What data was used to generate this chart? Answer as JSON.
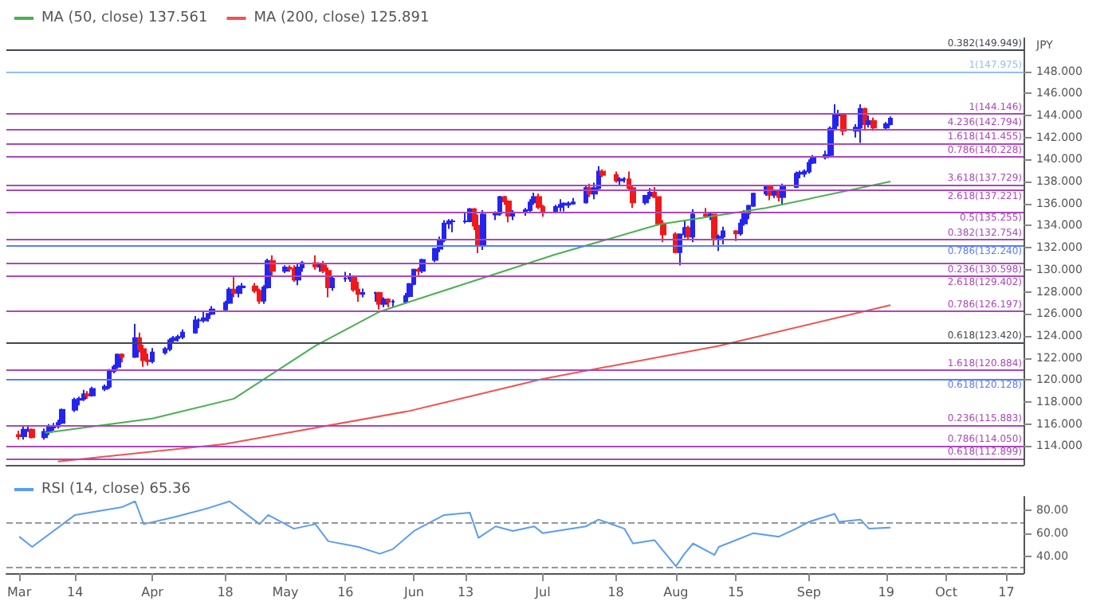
{
  "chart_data": [
    {
      "type": "candlestick",
      "ylabel": "JPY",
      "legend": "top left",
      "tick_labels": "y",
      "xlim": [
        "--02-26",
        "--10-21"
      ],
      "ylim": [
        112.3,
        151
      ],
      "yticks": [
        {
          "value": 114,
          "label": "114.000"
        },
        {
          "value": 116,
          "label": "116.000"
        },
        {
          "value": 118,
          "label": "118.000"
        },
        {
          "value": 120,
          "label": "120.000"
        },
        {
          "value": 122,
          "label": "122.000"
        },
        {
          "value": 124,
          "label": "124.000"
        },
        {
          "value": 126,
          "label": "126.000"
        },
        {
          "value": 128,
          "label": "128.000"
        },
        {
          "value": 130,
          "label": "130.000"
        },
        {
          "value": 132,
          "label": "132.000"
        },
        {
          "value": 134,
          "label": "134.000"
        },
        {
          "value": 136,
          "label": "136.000"
        },
        {
          "value": 138,
          "label": "138.000"
        },
        {
          "value": 140,
          "label": "140.000"
        },
        {
          "value": 142,
          "label": "142.000"
        },
        {
          "value": 144,
          "label": "144.000"
        },
        {
          "value": 146,
          "label": "146.000"
        },
        {
          "value": 148,
          "label": "148.000"
        }
      ],
      "x": [
        "--03-01",
        "--03-02",
        "--03-03",
        "--03-04",
        "--03-07",
        "--03-08",
        "--03-09",
        "--03-10",
        "--03-11",
        "--03-14",
        "--03-15",
        "--03-16",
        "--03-17",
        "--03-18",
        "--03-21",
        "--03-22",
        "--03-23",
        "--03-24",
        "--03-25",
        "--03-28",
        "--03-29",
        "--03-30",
        "--03-31",
        "--04-01",
        "--04-04",
        "--04-05",
        "--04-06",
        "--04-07",
        "--04-08",
        "--04-11",
        "--04-12",
        "--04-13",
        "--04-14",
        "--04-15",
        "--04-18",
        "--04-19",
        "--04-20",
        "--04-21",
        "--04-22",
        "--04-25",
        "--04-26",
        "--04-27",
        "--04-28",
        "--04-29",
        "--05-02",
        "--05-03",
        "--05-04",
        "--05-05",
        "--05-06",
        "--05-09",
        "--05-10",
        "--05-11",
        "--05-12",
        "--05-13",
        "--05-16",
        "--05-17",
        "--05-18",
        "--05-19",
        "--05-20",
        "--05-23",
        "--05-24",
        "--05-25",
        "--05-26",
        "--05-27",
        "--05-30",
        "--05-31",
        "--06-01",
        "--06-02",
        "--06-03",
        "--06-06",
        "--06-07",
        "--06-08",
        "--06-09",
        "--06-10",
        "--06-13",
        "--06-14",
        "--06-15",
        "--06-16",
        "--06-17",
        "--06-20",
        "--06-21",
        "--06-22",
        "--06-23",
        "--06-24",
        "--06-27",
        "--06-28",
        "--06-29",
        "--06-30",
        "--07-01",
        "--07-04",
        "--07-05",
        "--07-06",
        "--07-07",
        "--07-08",
        "--07-11",
        "--07-12",
        "--07-13",
        "--07-14",
        "--07-15",
        "--07-18",
        "--07-19",
        "--07-20",
        "--07-21",
        "--07-22",
        "--07-25",
        "--07-26",
        "--07-27",
        "--07-28",
        "--07-29",
        "--08-01",
        "--08-02",
        "--08-03",
        "--08-04",
        "--08-05",
        "--08-08",
        "--08-09",
        "--08-10",
        "--08-11",
        "--08-12",
        "--08-15",
        "--08-16",
        "--08-17",
        "--08-18",
        "--08-19",
        "--08-22",
        "--08-23",
        "--08-24",
        "--08-25",
        "--08-26",
        "--08-29",
        "--08-30",
        "--08-31",
        "--09-01",
        "--09-02",
        "--09-05",
        "--09-06",
        "--09-07",
        "--09-08",
        "--09-09",
        "--09-12",
        "--09-13",
        "--09-14",
        "--09-15",
        "--09-16",
        "--09-19",
        "--09-20"
      ],
      "ohlc": [
        [
          115.0,
          115.4,
          114.6,
          114.9
        ],
        [
          114.9,
          115.8,
          114.6,
          115.5
        ],
        [
          115.5,
          115.8,
          115.3,
          115.5
        ],
        [
          115.5,
          115.6,
          114.7,
          114.8
        ],
        [
          114.8,
          115.6,
          114.6,
          115.3
        ],
        [
          115.3,
          116.0,
          115.0,
          115.7
        ],
        [
          115.7,
          116.1,
          115.4,
          115.8
        ],
        [
          115.8,
          116.4,
          115.6,
          116.1
        ],
        [
          116.1,
          117.4,
          116.0,
          117.3
        ],
        [
          117.3,
          118.4,
          117.1,
          118.2
        ],
        [
          118.2,
          118.5,
          117.7,
          118.3
        ],
        [
          118.3,
          119.1,
          118.1,
          118.7
        ],
        [
          118.7,
          119.0,
          118.3,
          118.6
        ],
        [
          118.6,
          119.4,
          118.5,
          119.2
        ],
        [
          119.2,
          119.6,
          119.0,
          119.4
        ],
        [
          119.4,
          121.0,
          119.2,
          120.8
        ],
        [
          120.8,
          121.4,
          120.6,
          121.2
        ],
        [
          121.2,
          122.4,
          121.0,
          122.3
        ],
        [
          122.3,
          122.4,
          121.6,
          122.1
        ],
        [
          122.1,
          125.1,
          122.0,
          123.8
        ],
        [
          123.8,
          124.3,
          122.5,
          122.8
        ],
        [
          122.8,
          123.2,
          121.2,
          121.8
        ],
        [
          121.8,
          122.4,
          121.3,
          121.7
        ],
        [
          121.7,
          122.9,
          121.5,
          122.5
        ],
        [
          122.5,
          123.0,
          122.3,
          122.8
        ],
        [
          122.8,
          123.8,
          122.6,
          123.6
        ],
        [
          123.6,
          124.0,
          123.3,
          123.8
        ],
        [
          123.8,
          124.1,
          123.5,
          123.9
        ],
        [
          123.9,
          124.6,
          123.7,
          124.3
        ],
        [
          124.3,
          125.8,
          124.2,
          125.4
        ],
        [
          125.4,
          125.6,
          124.7,
          125.4
        ],
        [
          125.4,
          126.3,
          125.2,
          125.6
        ],
        [
          125.6,
          126.0,
          125.3,
          126.0
        ],
        [
          126.0,
          126.7,
          125.9,
          126.4
        ],
        [
          126.4,
          127.2,
          126.3,
          127.0
        ],
        [
          127.0,
          128.4,
          126.9,
          128.2
        ],
        [
          128.2,
          129.4,
          127.5,
          127.9
        ],
        [
          127.9,
          128.6,
          127.5,
          128.4
        ],
        [
          128.4,
          128.8,
          127.8,
          128.5
        ],
        [
          128.5,
          128.8,
          127.9,
          128.1
        ],
        [
          128.1,
          128.3,
          126.9,
          127.2
        ],
        [
          127.2,
          128.6,
          126.9,
          128.4
        ],
        [
          128.4,
          131.0,
          128.3,
          130.8
        ],
        [
          130.8,
          131.3,
          129.4,
          129.9
        ],
        [
          129.9,
          130.4,
          129.7,
          130.2
        ],
        [
          130.2,
          130.4,
          129.8,
          130.1
        ],
        [
          130.1,
          130.4,
          128.9,
          129.1
        ],
        [
          129.1,
          130.5,
          128.6,
          130.2
        ],
        [
          130.2,
          130.8,
          129.8,
          130.6
        ],
        [
          130.6,
          131.3,
          130.0,
          130.3
        ],
        [
          130.3,
          130.5,
          129.8,
          130.4
        ],
        [
          130.4,
          130.8,
          129.7,
          129.9
        ],
        [
          129.9,
          130.2,
          127.5,
          128.4
        ],
        [
          128.4,
          129.4,
          128.1,
          129.2
        ],
        [
          129.2,
          129.8,
          128.9,
          129.2
        ],
        [
          129.2,
          129.7,
          128.9,
          129.4
        ],
        [
          129.4,
          129.5,
          128.0,
          128.2
        ],
        [
          128.2,
          128.9,
          127.1,
          127.8
        ],
        [
          127.8,
          128.3,
          127.5,
          127.9
        ],
        [
          127.9,
          128.0,
          127.1,
          127.9
        ],
        [
          127.9,
          128.0,
          126.4,
          126.9
        ],
        [
          126.9,
          127.5,
          126.6,
          127.3
        ],
        [
          127.3,
          127.4,
          126.6,
          127.1
        ],
        [
          127.1,
          127.3,
          126.6,
          127.1
        ],
        [
          127.1,
          127.9,
          126.9,
          127.6
        ],
        [
          127.6,
          128.8,
          127.5,
          128.7
        ],
        [
          128.7,
          130.1,
          128.6,
          130.0
        ],
        [
          130.0,
          130.2,
          129.5,
          129.9
        ],
        [
          129.9,
          131.0,
          129.7,
          130.9
        ],
        [
          130.9,
          132.0,
          130.7,
          131.9
        ],
        [
          131.9,
          133.0,
          131.6,
          132.7
        ],
        [
          132.7,
          134.5,
          132.5,
          134.2
        ],
        [
          134.2,
          134.6,
          133.7,
          134.4
        ],
        [
          134.4,
          134.6,
          133.4,
          134.4
        ],
        [
          134.4,
          135.2,
          134.2,
          134.4
        ],
        [
          134.4,
          135.6,
          134.3,
          135.5
        ],
        [
          135.5,
          135.6,
          133.6,
          134.0
        ],
        [
          134.0,
          135.0,
          131.5,
          132.2
        ],
        [
          132.2,
          135.4,
          131.8,
          135.0
        ],
        [
          135.0,
          135.3,
          134.5,
          135.1
        ],
        [
          135.1,
          136.7,
          134.9,
          136.6
        ],
        [
          136.6,
          136.7,
          135.9,
          136.2
        ],
        [
          136.2,
          136.3,
          134.3,
          134.9
        ],
        [
          134.9,
          135.4,
          134.5,
          135.2
        ],
        [
          135.2,
          135.6,
          134.9,
          135.4
        ],
        [
          135.4,
          136.4,
          135.2,
          136.1
        ],
        [
          136.1,
          137.0,
          135.9,
          136.6
        ],
        [
          136.6,
          136.9,
          135.5,
          135.7
        ],
        [
          135.7,
          135.9,
          134.8,
          135.2
        ],
        [
          135.2,
          135.9,
          135.1,
          135.7
        ],
        [
          135.7,
          136.4,
          135.3,
          135.9
        ],
        [
          135.9,
          136.1,
          135.3,
          136.0
        ],
        [
          135.9,
          136.2,
          135.6,
          136.0
        ],
        [
          136.0,
          136.5,
          135.9,
          136.1
        ],
        [
          136.1,
          137.7,
          136.0,
          137.4
        ],
        [
          137.4,
          137.8,
          136.6,
          136.9
        ],
        [
          136.9,
          137.9,
          136.4,
          137.4
        ],
        [
          137.4,
          139.4,
          137.3,
          138.9
        ],
        [
          138.9,
          139.1,
          138.4,
          138.6
        ],
        [
          138.6,
          138.9,
          137.9,
          138.1
        ],
        [
          138.1,
          138.4,
          137.7,
          138.2
        ],
        [
          138.2,
          138.4,
          137.9,
          138.2
        ],
        [
          138.2,
          138.9,
          137.2,
          137.4
        ],
        [
          137.4,
          137.6,
          135.6,
          136.1
        ],
        [
          136.1,
          136.8,
          135.9,
          136.7
        ],
        [
          136.7,
          137.4,
          136.4,
          137.0
        ],
        [
          137.0,
          137.5,
          136.5,
          136.6
        ],
        [
          136.6,
          136.6,
          134.0,
          134.2
        ],
        [
          134.2,
          134.5,
          132.5,
          133.2
        ],
        [
          133.2,
          133.4,
          131.5,
          131.6
        ],
        [
          131.6,
          133.3,
          130.4,
          133.2
        ],
        [
          133.2,
          134.5,
          132.9,
          133.8
        ],
        [
          133.8,
          134.0,
          132.8,
          133.0
        ],
        [
          133.0,
          135.5,
          132.5,
          135.0
        ],
        [
          135.0,
          135.6,
          134.7,
          134.9
        ],
        [
          134.9,
          135.2,
          134.5,
          135.0
        ],
        [
          135.0,
          135.0,
          132.2,
          132.9
        ],
        [
          132.9,
          133.2,
          131.7,
          133.0
        ],
        [
          133.0,
          133.9,
          132.3,
          133.5
        ],
        [
          133.5,
          133.6,
          132.6,
          133.3
        ],
        [
          133.3,
          134.6,
          133.1,
          134.2
        ],
        [
          134.2,
          135.4,
          134.0,
          135.1
        ],
        [
          135.1,
          135.9,
          134.6,
          135.8
        ],
        [
          135.8,
          137.0,
          135.7,
          136.9
        ],
        [
          136.9,
          137.7,
          136.7,
          137.5
        ],
        [
          137.5,
          137.6,
          136.3,
          136.8
        ],
        [
          136.8,
          137.3,
          136.5,
          137.2
        ],
        [
          137.2,
          137.3,
          136.2,
          136.6
        ],
        [
          136.6,
          137.8,
          135.9,
          137.5
        ],
        [
          137.5,
          138.9,
          137.4,
          138.7
        ],
        [
          138.7,
          139.0,
          138.3,
          138.8
        ],
        [
          138.7,
          139.1,
          138.4,
          138.9
        ],
        [
          138.9,
          140.0,
          138.7,
          139.7
        ],
        [
          139.7,
          140.4,
          139.6,
          140.2
        ],
        [
          140.2,
          140.8,
          140.0,
          140.4
        ],
        [
          140.4,
          143.0,
          140.3,
          142.8
        ],
        [
          142.8,
          145.0,
          142.6,
          144.0
        ],
        [
          144.0,
          144.5,
          143.0,
          144.1
        ],
        [
          144.1,
          144.2,
          142.2,
          142.6
        ],
        [
          142.6,
          143.2,
          142.0,
          142.9
        ],
        [
          142.9,
          145.0,
          141.5,
          144.6
        ],
        [
          144.6,
          144.7,
          142.6,
          143.2
        ],
        [
          143.2,
          144.0,
          142.9,
          143.5
        ],
        [
          143.5,
          143.8,
          142.6,
          142.9
        ],
        [
          142.9,
          143.4,
          142.7,
          143.2
        ],
        [
          143.2,
          143.9,
          143.1,
          143.7
        ]
      ],
      "colors": [
        "#f21818",
        "#2424f0",
        "#2424f0",
        "#f21818",
        "#2424f0",
        "#2424f0",
        "#2424f0",
        "#2424f0",
        "#2424f0",
        "#2424f0",
        "#2424f0",
        "#2424f0",
        "#f21818",
        "#2424f0",
        "#2424f0",
        "#2424f0",
        "#2424f0",
        "#2424f0",
        "#f21818",
        "#2424f0",
        "#f21818",
        "#f21818",
        "#f21818",
        "#2424f0",
        "#2424f0",
        "#2424f0",
        "#2424f0",
        "#2424f0",
        "#2424f0",
        "#2424f0",
        "#2424f0",
        "#2424f0",
        "#2424f0",
        "#2424f0",
        "#2424f0",
        "#2424f0",
        "#f21818",
        "#2424f0",
        "#2424f0",
        "#f21818",
        "#f21818",
        "#2424f0",
        "#2424f0",
        "#f21818",
        "#2424f0",
        "#f21818",
        "#f21818",
        "#2424f0",
        "#2424f0",
        "#f21818",
        "#2424f0",
        "#f21818",
        "#f21818",
        "#2424f0",
        "#2424f0",
        "#2424f0",
        "#f21818",
        "#f21818",
        "#2424f0",
        "#2424f0",
        "#f21818",
        "#2424f0",
        "#f21818",
        "#2424f0",
        "#2424f0",
        "#2424f0",
        "#2424f0",
        "#f21818",
        "#2424f0",
        "#2424f0",
        "#2424f0",
        "#2424f0",
        "#2424f0",
        "#2424f0",
        "#2424f0",
        "#2424f0",
        "#f21818",
        "#f21818",
        "#2424f0",
        "#2424f0",
        "#2424f0",
        "#f21818",
        "#f21818",
        "#2424f0",
        "#2424f0",
        "#2424f0",
        "#2424f0",
        "#f21818",
        "#f21818",
        "#2424f0",
        "#2424f0",
        "#2424f0",
        "#2424f0",
        "#2424f0",
        "#2424f0",
        "#f21818",
        "#2424f0",
        "#2424f0",
        "#f21818",
        "#f21818",
        "#2424f0",
        "#2424f0",
        "#f21818",
        "#f21818",
        "#2424f0",
        "#2424f0",
        "#f21818",
        "#f21818",
        "#f21818",
        "#f21818",
        "#2424f0",
        "#2424f0",
        "#f21818",
        "#2424f0",
        "#f21818",
        "#2424f0",
        "#f21818",
        "#2424f0",
        "#2424f0",
        "#f21818",
        "#2424f0",
        "#2424f0",
        "#2424f0",
        "#2424f0",
        "#2424f0",
        "#f21818",
        "#2424f0",
        "#f21818",
        "#2424f0",
        "#2424f0",
        "#2424f0",
        "#2424f0",
        "#2424f0",
        "#2424f0",
        "#2424f0",
        "#2424f0",
        "#2424f0",
        "#2424f0",
        "#f21818",
        "#2424f0",
        "#2424f0",
        "#f21818",
        "#2424f0",
        "#f21818",
        "#2424f0",
        "#2424f0"
      ],
      "series": [
        {
          "type": "line",
          "name": "MA (50, close) 137.561",
          "color": "#4caf50",
          "x": [
            "--03-07",
            "--04-01",
            "--04-20",
            "--05-09",
            "--05-24",
            "--05-31",
            "--07-04",
            "--07-28",
            "--08-22",
            "--09-20"
          ],
          "values": [
            115.2,
            116.5,
            118.3,
            123.1,
            126.2,
            127.1,
            131.4,
            134.1,
            135.6,
            138.0
          ]
        },
        {
          "type": "line",
          "name": "MA (200, close) 125.891",
          "color": "#ef5350",
          "x": [
            "--03-10",
            "--04-18",
            "--05-31",
            "--07-01",
            "--08-11",
            "--09-20"
          ],
          "values": [
            112.6,
            114.2,
            117.2,
            120.1,
            123.1,
            126.8
          ]
        }
      ],
      "ref_lines": [
        {
          "axis": "y",
          "value": 149.949,
          "label": "0.382(149.949)",
          "color": "#434651"
        },
        {
          "axis": "y",
          "value": 147.975,
          "label": "1(147.975)",
          "color": "#90bff9"
        },
        {
          "axis": "y",
          "value": 144.146,
          "label": "1(144.146)",
          "color": "#ab47bc"
        },
        {
          "axis": "y",
          "value": 142.794,
          "label": "4.236(142.794)",
          "color": "#ab47bc"
        },
        {
          "axis": "y",
          "value": 141.455,
          "label": "1.618(141.455)",
          "color": "#ab47bc"
        },
        {
          "axis": "y",
          "value": 140.228,
          "label": "0.786(140.228)",
          "color": "#ab47bc"
        },
        {
          "axis": "y",
          "value": 137.729,
          "label": "3.618(137.729)",
          "color": "#ab47bc"
        },
        {
          "axis": "y",
          "value": 137.221,
          "label": "2.618(137.221)",
          "color": "#ab47bc"
        },
        {
          "axis": "y",
          "value": 135.255,
          "label": "0.5(135.255)",
          "color": "#ab47bc"
        },
        {
          "axis": "y",
          "value": 132.754,
          "label": "0.382(132.754)",
          "color": "#ab47bc"
        },
        {
          "axis": "y",
          "value": 132.24,
          "label": "0.786(132.240)",
          "color": "#5c7cf5"
        },
        {
          "axis": "y",
          "value": 130.598,
          "label": "0.236(130.598)",
          "color": "#ab47bc"
        },
        {
          "axis": "y",
          "value": 129.402,
          "label": "2.618(129.402)",
          "color": "#ab47bc"
        },
        {
          "axis": "y",
          "value": 126.197,
          "label": "0.786(126.197)",
          "color": "#ab47bc"
        },
        {
          "axis": "y",
          "value": 123.42,
          "label": "0.618(123.420)",
          "color": "#434651"
        },
        {
          "axis": "y",
          "value": 120.884,
          "label": "1.618(120.884)",
          "color": "#ab47bc"
        },
        {
          "axis": "y",
          "value": 120.128,
          "label": "0.618(120.128)",
          "color": "#5c7cf5"
        },
        {
          "axis": "y",
          "value": 115.883,
          "label": "0.236(115.883)",
          "color": "#ab47bc"
        },
        {
          "axis": "y",
          "value": 114.05,
          "label": "0.786(114.050)",
          "color": "#ab47bc"
        },
        {
          "axis": "y",
          "value": 112.899,
          "label": "0.618(112.899)",
          "color": "#ab47bc"
        }
      ]
    },
    {
      "type": "line",
      "legend": "top left",
      "xlim": [
        "--02-26",
        "--10-21"
      ],
      "ylim": [
        25,
        92
      ],
      "xticks": [
        {
          "value": "--03-01",
          "label": "Mar"
        },
        {
          "value": "--03-14",
          "label": "14"
        },
        {
          "value": "--04-01",
          "label": "Apr"
        },
        {
          "value": "--04-18",
          "label": "18"
        },
        {
          "value": "--05-02",
          "label": "May"
        },
        {
          "value": "--05-16",
          "label": "16"
        },
        {
          "value": "--06-01",
          "label": "Jun"
        },
        {
          "value": "--06-13",
          "label": "13"
        },
        {
          "value": "--07-01",
          "label": "Jul"
        },
        {
          "value": "--07-18",
          "label": "18"
        },
        {
          "value": "--08-01",
          "label": "Aug"
        },
        {
          "value": "--08-15",
          "label": "15"
        },
        {
          "value": "--09-01",
          "label": "Sep"
        },
        {
          "value": "--09-19",
          "label": "19"
        },
        {
          "value": "--10-03",
          "label": "Oct"
        },
        {
          "value": "--10-17",
          "label": "17"
        }
      ],
      "yticks": [
        {
          "value": 40,
          "label": "40.00"
        },
        {
          "value": 60,
          "label": "60.00"
        },
        {
          "value": 80,
          "label": "80.00"
        }
      ],
      "series": [
        {
          "name": "RSI (14, close) 65.36",
          "color": "#5b9cf6",
          "x": [
            "--03-01",
            "--03-04",
            "--03-14",
            "--03-25",
            "--03-28",
            "--03-30",
            "--04-06",
            "--04-14",
            "--04-19",
            "--04-26",
            "--04-28",
            "--05-04",
            "--05-09",
            "--05-12",
            "--05-19",
            "--05-24",
            "--05-27",
            "--06-01",
            "--06-08",
            "--06-14",
            "--06-16",
            "--06-20",
            "--06-24",
            "--06-29",
            "--07-01",
            "--07-11",
            "--07-14",
            "--07-20",
            "--07-22",
            "--07-27",
            "--08-01",
            "--08-03",
            "--08-05",
            "--08-10",
            "--08-11",
            "--08-15",
            "--08-19",
            "--08-25",
            "--08-29",
            "--09-01",
            "--09-07",
            "--09-08",
            "--09-13",
            "--09-15",
            "--09-20"
          ],
          "values": [
            57,
            48,
            76,
            83,
            88,
            68,
            74,
            82,
            88,
            68,
            76,
            64,
            68,
            53,
            48,
            42,
            46,
            62,
            76,
            78,
            56,
            66,
            62,
            66,
            60,
            66,
            72,
            64,
            51,
            54,
            31,
            42,
            51,
            41,
            48,
            54,
            60,
            57,
            64,
            70,
            77,
            70,
            72,
            64,
            65
          ]
        }
      ],
      "ref_lines": [
        {
          "axis": "y",
          "value": 70,
          "color": "#9598a1",
          "line_style": "dashed"
        },
        {
          "axis": "y",
          "value": 30,
          "color": "#9598a1",
          "line_style": "dashed"
        }
      ]
    }
  ]
}
